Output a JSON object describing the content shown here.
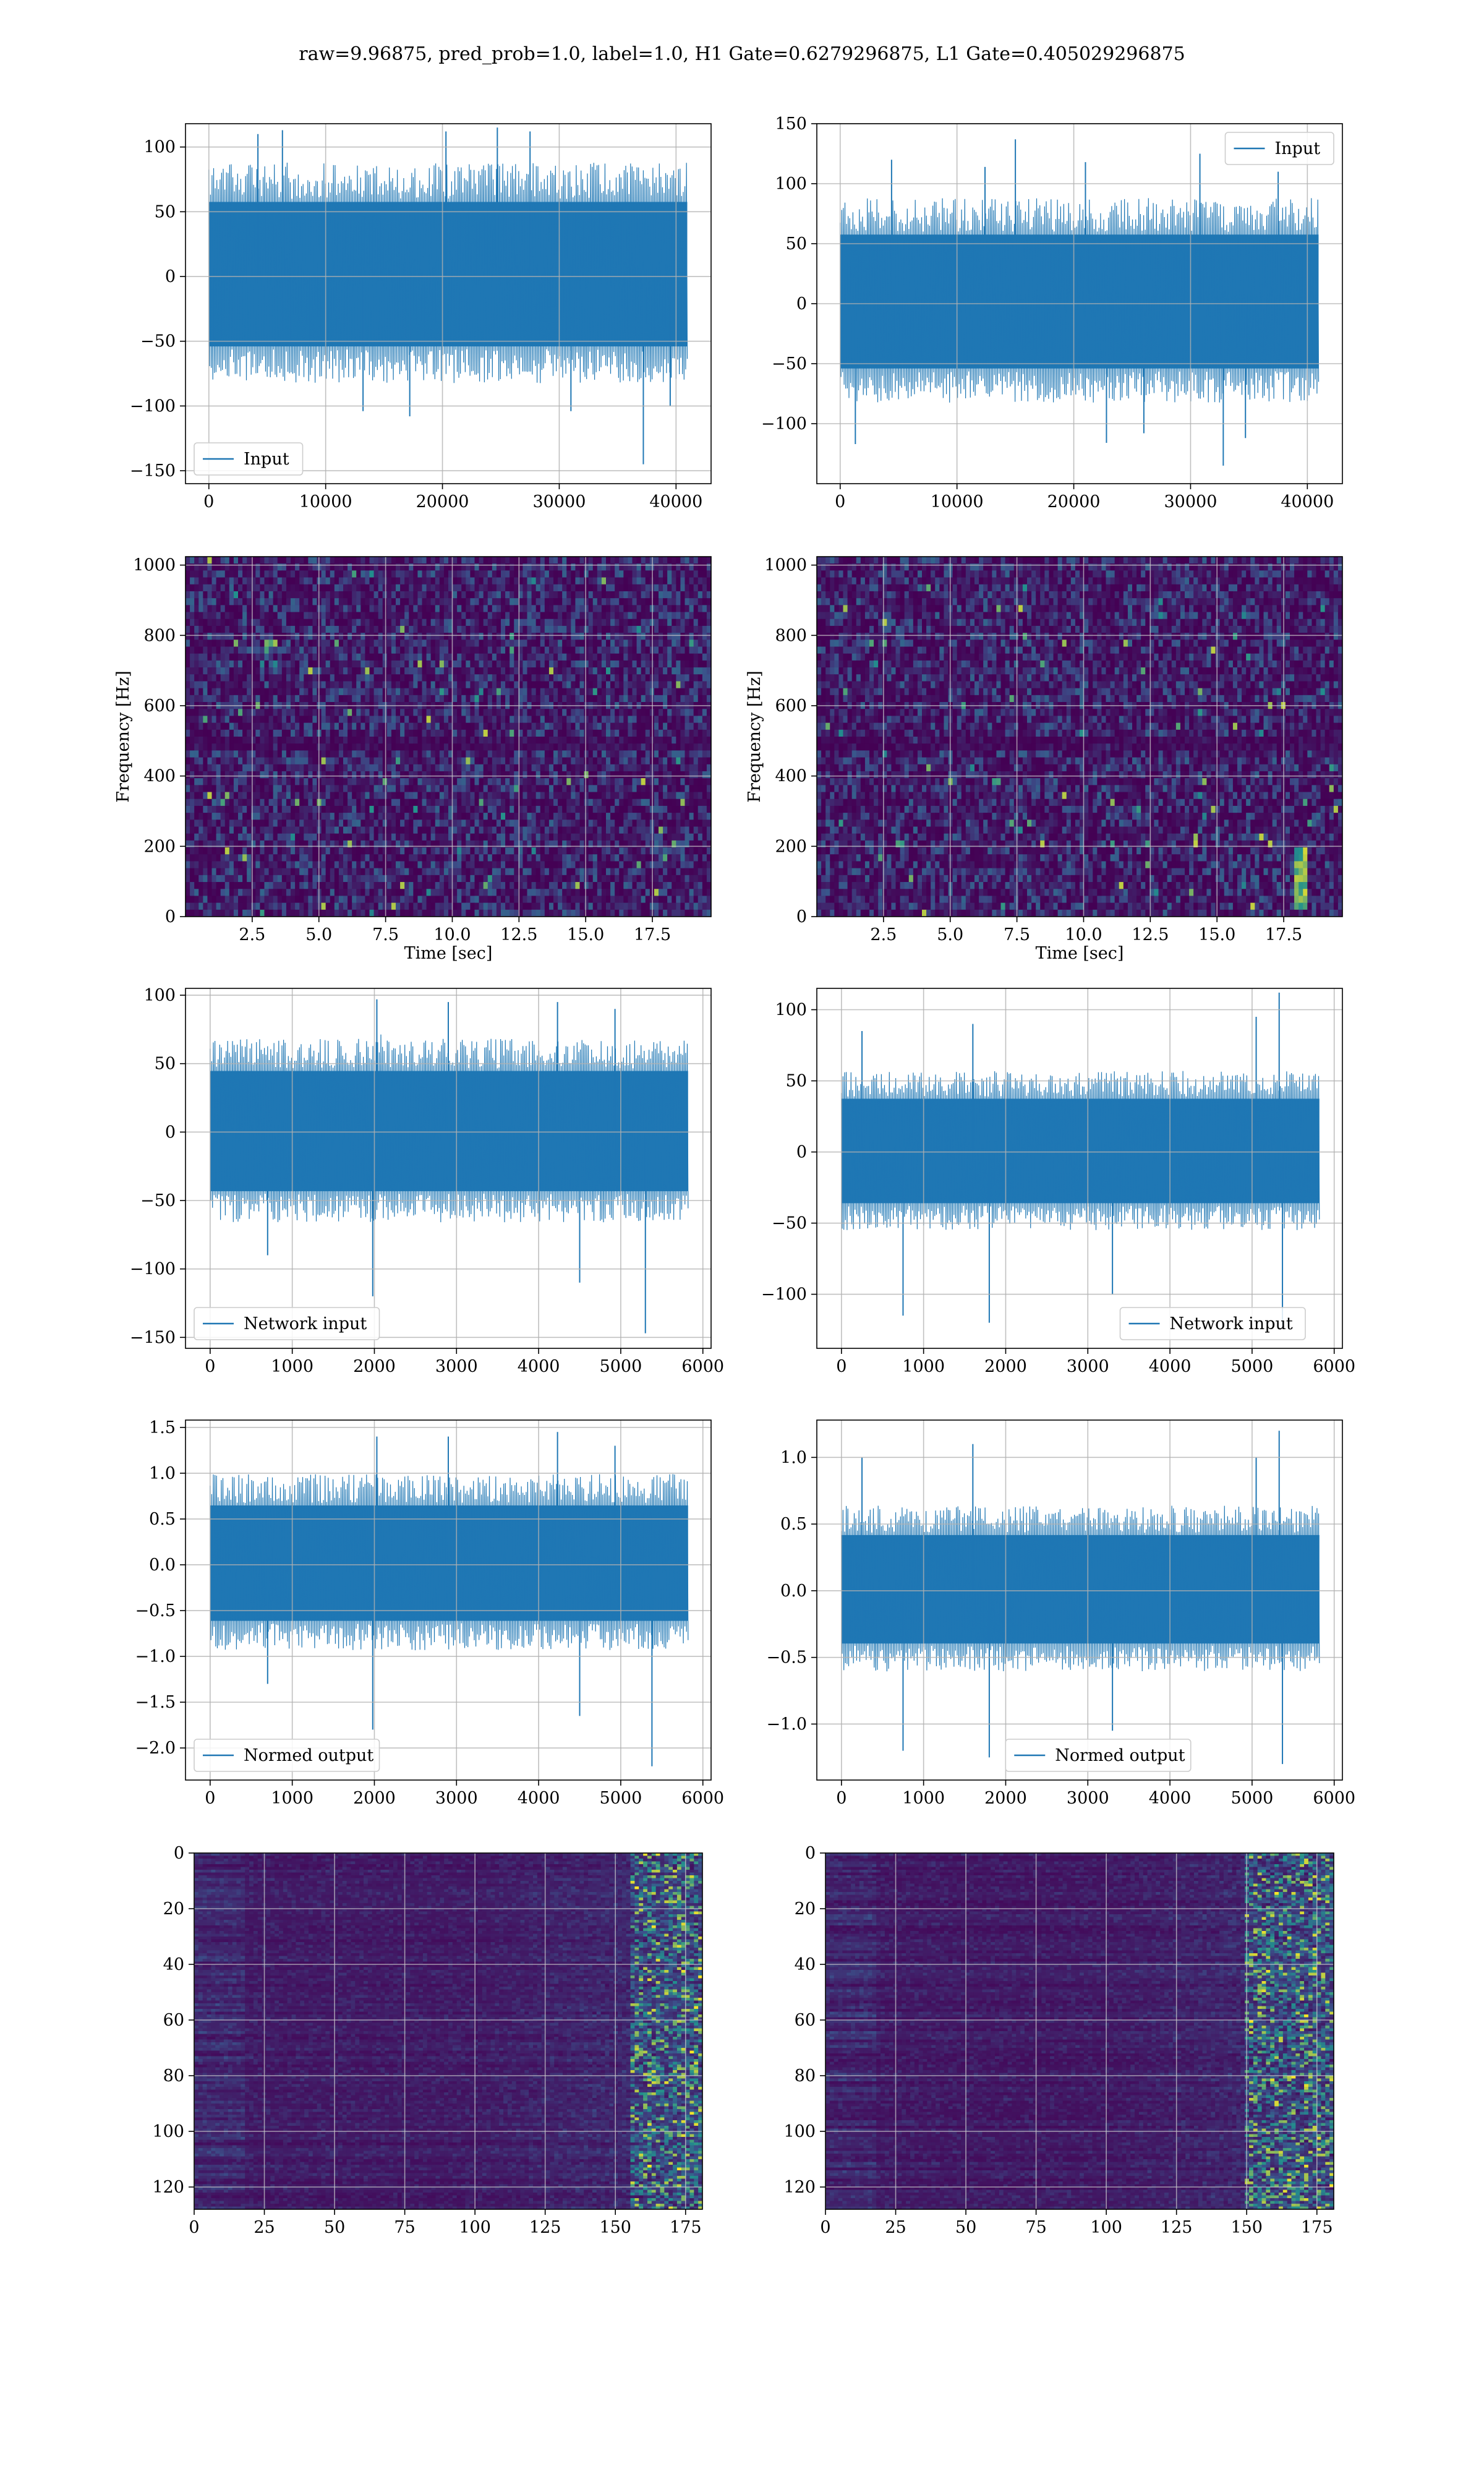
{
  "figure_title": "raw=9.96875, pred_prob=1.0, label=1.0, H1 Gate=0.6279296875, L1 Gate=0.405029296875",
  "colors": {
    "line": "#1f77b4",
    "grid": "#b0b0b0",
    "viridis_low": "#440154",
    "viridis_mid": "#21908d",
    "viridis_high": "#fde725"
  },
  "chart_data": [
    {
      "type": "line",
      "row": 0,
      "col": 0,
      "title": "",
      "xlabel": "",
      "ylabel": "",
      "legend": [
        "Input"
      ],
      "legend_loc": "lower-left",
      "grid": true,
      "xlim": [
        -2000,
        43000
      ],
      "ylim": [
        -160,
        118
      ],
      "xticks": [
        0,
        10000,
        20000,
        30000,
        40000
      ],
      "yticks": [
        -150,
        -100,
        -50,
        0,
        50,
        100
      ],
      "series": [
        {
          "name": "Input",
          "n": 600,
          "x_range": [
            0,
            40960
          ],
          "envelope": [
            -75,
            80
          ],
          "spikes": [
            {
              "x": 37200,
              "y": -145
            },
            {
              "x": 6300,
              "y": 113
            },
            {
              "x": 24700,
              "y": 115
            },
            {
              "x": 20300,
              "y": 112
            },
            {
              "x": 17200,
              "y": -108
            },
            {
              "x": 13200,
              "y": -104
            },
            {
              "x": 31000,
              "y": -104
            },
            {
              "x": 4200,
              "y": 110
            },
            {
              "x": 27500,
              "y": 112
            },
            {
              "x": 39500,
              "y": -100
            }
          ]
        }
      ]
    },
    {
      "type": "line",
      "row": 0,
      "col": 1,
      "title": "",
      "xlabel": "",
      "ylabel": "",
      "legend": [
        "Input"
      ],
      "legend_loc": "upper-right",
      "grid": true,
      "xlim": [
        -2000,
        43000
      ],
      "ylim": [
        -150,
        150
      ],
      "xticks": [
        0,
        10000,
        20000,
        30000,
        40000
      ],
      "yticks": [
        -100,
        -50,
        0,
        50,
        100,
        150
      ],
      "series": [
        {
          "name": "Input",
          "n": 600,
          "x_range": [
            0,
            40960
          ],
          "envelope": [
            -75,
            80
          ],
          "spikes": [
            {
              "x": 15000,
              "y": 137
            },
            {
              "x": 32800,
              "y": -135
            },
            {
              "x": 21000,
              "y": 118
            },
            {
              "x": 30800,
              "y": 125
            },
            {
              "x": 1300,
              "y": -117
            },
            {
              "x": 22800,
              "y": -116
            },
            {
              "x": 4400,
              "y": 120
            },
            {
              "x": 26000,
              "y": -108
            },
            {
              "x": 12400,
              "y": 114
            },
            {
              "x": 37500,
              "y": 110
            },
            {
              "x": 34700,
              "y": -112
            }
          ]
        }
      ]
    },
    {
      "type": "heatmap",
      "row": 1,
      "col": 0,
      "title": "",
      "xlabel": "Time [sec]",
      "ylabel": "Frequency [Hz]",
      "grid": true,
      "xlim": [
        0,
        19.7
      ],
      "ylim": [
        0,
        1024
      ],
      "xticks": [
        2.5,
        5.0,
        7.5,
        10.0,
        12.5,
        15.0,
        17.5
      ],
      "yticks": [
        0,
        200,
        400,
        600,
        800,
        1000
      ],
      "cols": 120,
      "rows": 52,
      "colormap": "viridis",
      "dark_band_hz": [
        475,
        520
      ]
    },
    {
      "type": "heatmap",
      "row": 1,
      "col": 1,
      "title": "",
      "xlabel": "Time [sec]",
      "ylabel": "Frequency [Hz]",
      "grid": true,
      "xlim": [
        0,
        19.7
      ],
      "ylim": [
        0,
        1024
      ],
      "xticks": [
        2.5,
        5.0,
        7.5,
        10.0,
        12.5,
        15.0,
        17.5
      ],
      "yticks": [
        0,
        200,
        400,
        600,
        800,
        1000
      ],
      "cols": 120,
      "rows": 52,
      "colormap": "viridis",
      "dark_band_hz": [
        475,
        520
      ],
      "bright_track": {
        "x_sec": 18.2,
        "hz_range": [
          20,
          200
        ]
      }
    },
    {
      "type": "line",
      "row": 2,
      "col": 0,
      "title": "",
      "xlabel": "",
      "ylabel": "",
      "legend": [
        "Network input"
      ],
      "legend_loc": "lower-left",
      "grid": true,
      "xlim": [
        -300,
        6100
      ],
      "ylim": [
        -158,
        105
      ],
      "xticks": [
        0,
        1000,
        2000,
        3000,
        4000,
        5000,
        6000
      ],
      "yticks": [
        -150,
        -100,
        -50,
        0,
        50,
        100
      ],
      "series": [
        {
          "name": "Network input",
          "n": 600,
          "x_range": [
            0,
            5820
          ],
          "envelope": [
            -60,
            62
          ],
          "spikes": [
            {
              "x": 5300,
              "y": -147
            },
            {
              "x": 1980,
              "y": -120
            },
            {
              "x": 4500,
              "y": -110
            },
            {
              "x": 2030,
              "y": 97
            },
            {
              "x": 2900,
              "y": 95
            },
            {
              "x": 4230,
              "y": 95
            },
            {
              "x": 700,
              "y": -90
            },
            {
              "x": 4930,
              "y": 90
            }
          ]
        }
      ]
    },
    {
      "type": "line",
      "row": 2,
      "col": 1,
      "title": "",
      "xlabel": "",
      "ylabel": "",
      "legend": [
        "Network input"
      ],
      "legend_loc": "lower-right",
      "grid": true,
      "xlim": [
        -300,
        6100
      ],
      "ylim": [
        -138,
        115
      ],
      "xticks": [
        0,
        1000,
        2000,
        3000,
        4000,
        5000,
        6000
      ],
      "yticks": [
        -100,
        -50,
        0,
        50,
        100
      ],
      "series": [
        {
          "name": "Network input",
          "n": 600,
          "x_range": [
            0,
            5820
          ],
          "envelope": [
            -50,
            52
          ],
          "spikes": [
            {
              "x": 5330,
              "y": 112
            },
            {
              "x": 5370,
              "y": -122
            },
            {
              "x": 750,
              "y": -115
            },
            {
              "x": 1800,
              "y": -120
            },
            {
              "x": 1600,
              "y": 90
            },
            {
              "x": 5050,
              "y": 95
            },
            {
              "x": 3300,
              "y": -100
            },
            {
              "x": 250,
              "y": 85
            }
          ]
        }
      ]
    },
    {
      "type": "line",
      "row": 3,
      "col": 0,
      "title": "",
      "xlabel": "",
      "ylabel": "",
      "legend": [
        "Normed output"
      ],
      "legend_loc": "lower-left",
      "grid": true,
      "xlim": [
        -300,
        6100
      ],
      "ylim": [
        -2.35,
        1.58
      ],
      "xticks": [
        0,
        1000,
        2000,
        3000,
        4000,
        5000,
        6000
      ],
      "yticks": [
        -2.0,
        -1.5,
        -1.0,
        -0.5,
        0.0,
        0.5,
        1.0,
        1.5
      ],
      "series": [
        {
          "name": "Normed output",
          "n": 600,
          "x_range": [
            0,
            5820
          ],
          "envelope": [
            -0.85,
            0.9
          ],
          "spikes": [
            {
              "x": 5380,
              "y": -2.2
            },
            {
              "x": 1980,
              "y": -1.8
            },
            {
              "x": 4500,
              "y": -1.65
            },
            {
              "x": 2030,
              "y": 1.4
            },
            {
              "x": 2900,
              "y": 1.4
            },
            {
              "x": 4230,
              "y": 1.45
            },
            {
              "x": 700,
              "y": -1.3
            },
            {
              "x": 4930,
              "y": 1.3
            }
          ]
        }
      ]
    },
    {
      "type": "line",
      "row": 3,
      "col": 1,
      "title": "",
      "xlabel": "",
      "ylabel": "",
      "legend": [
        "Normed output"
      ],
      "legend_loc": "lower-center",
      "grid": true,
      "xlim": [
        -300,
        6100
      ],
      "ylim": [
        -1.42,
        1.28
      ],
      "xticks": [
        0,
        1000,
        2000,
        3000,
        4000,
        5000,
        6000
      ],
      "yticks": [
        -1.0,
        -0.5,
        0.0,
        0.5,
        1.0
      ],
      "series": [
        {
          "name": "Normed output",
          "n": 600,
          "x_range": [
            0,
            5820
          ],
          "envelope": [
            -0.55,
            0.58
          ],
          "spikes": [
            {
              "x": 5330,
              "y": 1.2
            },
            {
              "x": 5370,
              "y": -1.3
            },
            {
              "x": 750,
              "y": -1.2
            },
            {
              "x": 1800,
              "y": -1.25
            },
            {
              "x": 1600,
              "y": 1.1
            },
            {
              "x": 5050,
              "y": 1.0
            },
            {
              "x": 3300,
              "y": -1.05
            },
            {
              "x": 250,
              "y": 1.0
            }
          ]
        }
      ]
    },
    {
      "type": "heatmap",
      "row": 4,
      "col": 0,
      "title": "",
      "xlabel": "",
      "ylabel": "",
      "grid": true,
      "xlim": [
        0,
        181
      ],
      "ylim": [
        128,
        0
      ],
      "xticks": [
        0,
        25,
        50,
        75,
        100,
        125,
        150,
        175
      ],
      "yticks": [
        0,
        20,
        40,
        60,
        80,
        100,
        120
      ],
      "cols": 181,
      "rows": 128,
      "colormap": "viridis",
      "hot_columns": [
        155,
        181
      ]
    },
    {
      "type": "heatmap",
      "row": 4,
      "col": 1,
      "title": "",
      "xlabel": "",
      "ylabel": "",
      "grid": true,
      "xlim": [
        0,
        181
      ],
      "ylim": [
        128,
        0
      ],
      "xticks": [
        0,
        25,
        50,
        75,
        100,
        125,
        150,
        175
      ],
      "yticks": [
        0,
        20,
        40,
        60,
        80,
        100,
        120
      ],
      "cols": 181,
      "rows": 128,
      "colormap": "viridis",
      "hot_columns": [
        150,
        181
      ]
    }
  ]
}
